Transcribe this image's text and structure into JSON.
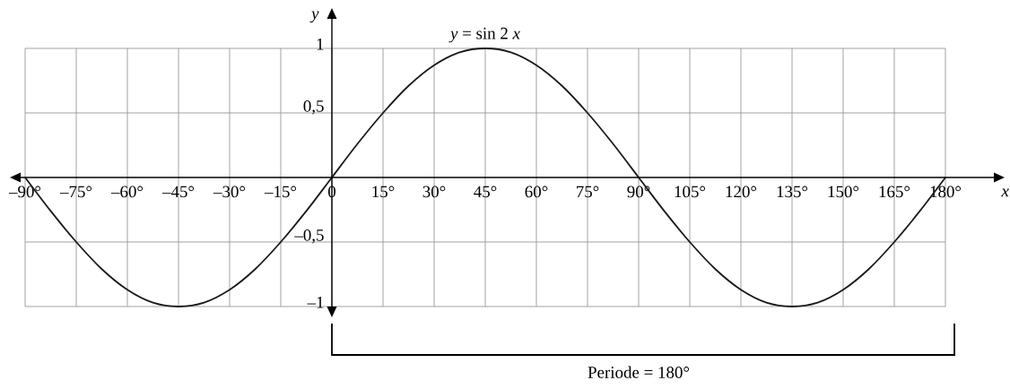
{
  "chart_data": {
    "type": "line",
    "x": [
      -90,
      -82.5,
      -75,
      -67.5,
      -60,
      -52.5,
      -45,
      -37.5,
      -30,
      -22.5,
      -15,
      -7.5,
      0,
      7.5,
      15,
      22.5,
      30,
      37.5,
      45,
      52.5,
      60,
      67.5,
      75,
      82.5,
      90,
      97.5,
      105,
      112.5,
      120,
      127.5,
      135,
      142.5,
      150,
      157.5,
      165,
      172.5,
      180
    ],
    "series": [
      {
        "color": "#1a1a1a",
        "values": [
          0,
          -0.26,
          -0.5,
          -0.71,
          -0.87,
          -0.97,
          -1,
          -0.97,
          -0.87,
          -0.71,
          -0.5,
          -0.26,
          0,
          0.26,
          0.5,
          0.71,
          0.87,
          0.97,
          1,
          0.97,
          0.87,
          0.71,
          0.5,
          0.26,
          0,
          -0.26,
          -0.5,
          -0.71,
          -0.87,
          -0.97,
          -1,
          -0.97,
          -0.87,
          -0.71,
          -0.5,
          -0.26,
          0
        ]
      }
    ],
    "xlabel": "x",
    "ylabel": "y",
    "xlim": [
      -90,
      180
    ],
    "ylim": [
      -1,
      1
    ],
    "xticks": [
      {
        "value": -90,
        "label": "–90°"
      },
      {
        "value": -75,
        "label": "–75°"
      },
      {
        "value": -60,
        "label": "–60°"
      },
      {
        "value": -45,
        "label": "–45°"
      },
      {
        "value": -30,
        "label": "–30°"
      },
      {
        "value": -15,
        "label": "–15°"
      },
      0,
      {
        "value": 15,
        "label": "15°"
      },
      {
        "value": 30,
        "label": "30°"
      },
      {
        "value": 45,
        "label": "45°"
      },
      {
        "value": 60,
        "label": "60°"
      },
      {
        "value": 75,
        "label": "75°"
      },
      {
        "value": 90,
        "label": "90°"
      },
      {
        "value": 105,
        "label": "105°"
      },
      {
        "value": 120,
        "label": "120°"
      },
      {
        "value": 135,
        "label": "135°"
      },
      {
        "value": 150,
        "label": "150°"
      },
      {
        "value": 165,
        "label": "165°"
      },
      {
        "value": 180,
        "label": "180°"
      }
    ],
    "yticks": [
      {
        "value": -1,
        "label": "–1"
      },
      {
        "value": -0.5,
        "label": "–0,5"
      },
      {
        "value": 0.5,
        "label": "0,5"
      },
      1
    ],
    "annotations": [
      {
        "text": "*y* = sin 2 *x*",
        "x": 45,
        "y": 1
      },
      "Periode = 180°"
    ],
    "grid": true,
    "marker": "none",
    "line_style": "solid"
  }
}
